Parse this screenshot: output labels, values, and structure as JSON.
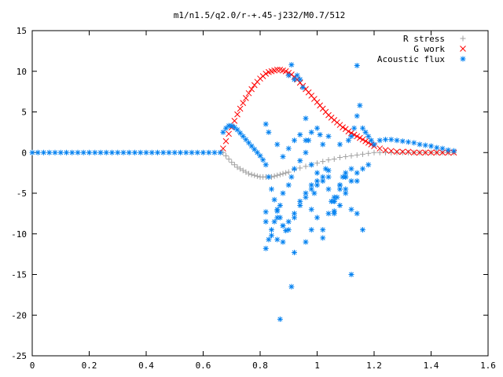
{
  "chart_data": {
    "type": "scatter",
    "title": "m1/n1.5/q2.0/r-+.45-j232/M0.7/512",
    "xlabel": "",
    "ylabel": "",
    "xlim": [
      0,
      1.6
    ],
    "ylim": [
      -25,
      15
    ],
    "x_ticks": [
      "0",
      "0.2",
      "0.4",
      "0.6",
      "0.8",
      "1",
      "1.2",
      "1.4",
      "1.6"
    ],
    "y_ticks": [
      "15",
      "10",
      "5",
      "0",
      "-5",
      "-10",
      "-15",
      "-20",
      "-25"
    ],
    "grid": false,
    "legend_position": "top-right",
    "series": [
      {
        "name": "R stress",
        "marker": "plus",
        "color": "#a0a0a0",
        "x": [
          0.67,
          0.68,
          0.69,
          0.7,
          0.71,
          0.72,
          0.73,
          0.74,
          0.75,
          0.76,
          0.77,
          0.78,
          0.79,
          0.8,
          0.81,
          0.82,
          0.83,
          0.84,
          0.85,
          0.86,
          0.87,
          0.88,
          0.89,
          0.9,
          0.92,
          0.94,
          0.96,
          0.98,
          1.0,
          1.02,
          1.04,
          1.06,
          1.08,
          1.1,
          1.12,
          1.14,
          1.16,
          1.18,
          1.2,
          1.22,
          1.24,
          1.26,
          1.28,
          1.3,
          1.32,
          1.34,
          1.36,
          1.38,
          1.4,
          1.42,
          1.44,
          1.46,
          1.48
        ],
        "y": [
          0.0,
          -0.4,
          -0.8,
          -1.2,
          -1.5,
          -1.8,
          -2.0,
          -2.2,
          -2.4,
          -2.6,
          -2.7,
          -2.8,
          -2.9,
          -3.0,
          -3.0,
          -3.0,
          -3.0,
          -3.0,
          -2.9,
          -2.8,
          -2.7,
          -2.6,
          -2.5,
          -2.4,
          -2.1,
          -1.9,
          -1.7,
          -1.5,
          -1.3,
          -1.1,
          -0.9,
          -0.8,
          -0.6,
          -0.5,
          -0.4,
          -0.3,
          -0.2,
          -0.1,
          0.0,
          0.0,
          0.0,
          0.0,
          0.0,
          0.0,
          0.0,
          0.0,
          0.0,
          0.0,
          0.0,
          0.0,
          0.0,
          0.0,
          0.0
        ]
      },
      {
        "name": "G work",
        "marker": "cross",
        "color": "#ff0000",
        "x": [
          0.67,
          0.68,
          0.69,
          0.7,
          0.71,
          0.72,
          0.73,
          0.74,
          0.75,
          0.76,
          0.77,
          0.78,
          0.79,
          0.8,
          0.81,
          0.82,
          0.83,
          0.84,
          0.85,
          0.86,
          0.87,
          0.88,
          0.89,
          0.9,
          0.91,
          0.92,
          0.93,
          0.94,
          0.95,
          0.96,
          0.97,
          0.98,
          0.99,
          1.0,
          1.01,
          1.02,
          1.03,
          1.04,
          1.05,
          1.06,
          1.07,
          1.08,
          1.09,
          1.1,
          1.11,
          1.12,
          1.13,
          1.14,
          1.15,
          1.16,
          1.17,
          1.18,
          1.19,
          1.2,
          1.22,
          1.24,
          1.26,
          1.28,
          1.3,
          1.32,
          1.34,
          1.36,
          1.38,
          1.4,
          1.42,
          1.44,
          1.46,
          1.48
        ],
        "y": [
          0.5,
          1.4,
          2.3,
          3.1,
          3.9,
          4.7,
          5.4,
          6.1,
          6.7,
          7.3,
          7.8,
          8.3,
          8.7,
          9.1,
          9.4,
          9.7,
          9.9,
          10.0,
          10.1,
          10.2,
          10.2,
          10.1,
          10.0,
          9.8,
          9.6,
          9.3,
          9.0,
          8.6,
          8.2,
          7.8,
          7.4,
          7.0,
          6.6,
          6.2,
          5.8,
          5.4,
          5.0,
          4.6,
          4.3,
          4.0,
          3.7,
          3.4,
          3.1,
          2.9,
          2.6,
          2.4,
          2.2,
          2.0,
          1.8,
          1.6,
          1.4,
          1.2,
          1.0,
          0.8,
          0.5,
          0.3,
          0.2,
          0.1,
          0.1,
          0.1,
          0.0,
          0.0,
          0.0,
          0.0,
          0.0,
          0.0,
          0.0,
          0.0
        ]
      },
      {
        "name": "Acoustic flux",
        "marker": "star",
        "color": "#0080f0",
        "x": [
          0.0,
          0.02,
          0.04,
          0.06,
          0.08,
          0.1,
          0.12,
          0.14,
          0.16,
          0.18,
          0.2,
          0.22,
          0.24,
          0.26,
          0.28,
          0.3,
          0.32,
          0.34,
          0.36,
          0.38,
          0.4,
          0.42,
          0.44,
          0.46,
          0.48,
          0.5,
          0.52,
          0.54,
          0.56,
          0.58,
          0.6,
          0.62,
          0.64,
          0.66,
          0.67,
          0.68,
          0.69,
          0.7,
          0.71,
          0.72,
          0.73,
          0.74,
          0.75,
          0.76,
          0.77,
          0.78,
          0.79,
          0.8,
          0.81,
          0.82,
          0.83,
          0.84,
          0.85,
          0.86,
          0.87,
          0.88,
          0.89,
          0.9,
          0.91,
          0.92,
          0.93,
          0.94,
          0.95,
          0.96,
          0.97,
          0.98,
          0.99,
          1.0,
          1.01,
          1.02,
          1.03,
          1.04,
          1.05,
          1.06,
          1.07,
          1.08,
          1.09,
          1.1,
          1.11,
          1.12,
          1.13,
          1.14,
          1.15,
          1.16,
          1.17,
          1.18,
          1.19,
          1.2,
          1.22,
          1.24,
          1.26,
          1.28,
          1.3,
          1.32,
          1.34,
          1.36,
          1.38,
          1.4,
          1.42,
          1.44,
          1.46,
          1.48,
          0.82,
          0.83,
          0.84,
          0.85,
          0.86,
          0.87,
          0.88,
          0.9,
          0.91,
          0.92,
          0.94,
          0.96,
          0.98,
          1.0,
          1.02,
          1.04,
          1.06,
          1.08,
          1.1,
          1.12,
          1.14,
          1.16,
          1.18,
          0.82,
          0.86,
          0.88,
          0.9,
          0.92,
          0.94,
          0.96,
          0.98,
          1.0,
          1.02,
          1.04,
          1.06,
          1.08,
          1.1,
          1.12,
          1.14,
          1.16,
          0.82,
          0.84,
          0.86,
          0.88,
          0.9,
          0.92,
          0.94,
          0.96,
          0.98,
          1.0,
          1.02,
          1.04,
          1.06,
          1.08,
          1.1,
          1.12,
          1.14,
          0.82,
          0.83,
          0.86,
          0.88,
          0.9,
          0.92,
          0.94,
          0.96,
          0.98,
          1.0,
          1.04,
          1.08,
          1.12,
          0.87,
          0.91,
          0.92,
          0.96,
          0.98,
          1.02,
          1.06,
          1.1,
          1.14
        ],
        "y": [
          0,
          0,
          0,
          0,
          0,
          0,
          0,
          0,
          0,
          0,
          0,
          0,
          0,
          0,
          0,
          0,
          0,
          0,
          0,
          0,
          0,
          0,
          0,
          0,
          0,
          0,
          0,
          0,
          0,
          0,
          0,
          0,
          0,
          0,
          2.5,
          3.0,
          3.3,
          3.3,
          3.1,
          2.8,
          2.4,
          2.0,
          1.6,
          1.2,
          0.8,
          0.4,
          0.0,
          -0.4,
          -0.9,
          -1.5,
          -3.0,
          -4.5,
          -5.8,
          -7.2,
          -8.0,
          -9.0,
          -9.6,
          9.5,
          10.8,
          9.0,
          9.5,
          9.0,
          8.0,
          4.2,
          1.5,
          -4.0,
          -5.0,
          -3.5,
          2.2,
          1.0,
          -2.0,
          -3.0,
          -6.0,
          -7.2,
          -5.5,
          -4.0,
          -3.0,
          -2.5,
          1.5,
          2.0,
          3.0,
          10.7,
          5.8,
          3.0,
          2.5,
          2.0,
          1.5,
          1.0,
          1.5,
          1.6,
          1.6,
          1.5,
          1.4,
          1.3,
          1.2,
          1.0,
          0.9,
          0.8,
          0.6,
          0.5,
          0.3,
          0.2,
          -11.8,
          -10.7,
          -9.5,
          -8.5,
          -7.0,
          -6.5,
          -5.0,
          -4.0,
          -3.0,
          -2.0,
          -1.0,
          0.0,
          -1.5,
          -2.5,
          -3.5,
          -4.5,
          -5.5,
          -6.5,
          -4.5,
          -3.5,
          -2.5,
          -2.0,
          -1.5,
          -7.3,
          -8.0,
          -9.0,
          -8.5,
          -7.5,
          -6.5,
          -5.5,
          -4.5,
          -4.0,
          -3.0,
          -2.2,
          -6.0,
          -4.0,
          -3.0,
          -2.0,
          -7.5,
          -9.5,
          -8.5,
          -10.2,
          -10.7,
          -11.0,
          -9.5,
          -8.0,
          -6.0,
          -5.0,
          -7.0,
          -8.0,
          -9.5,
          -7.5,
          -6.0,
          -4.5,
          -3.0,
          -7.0,
          4.5,
          3.5,
          2.5,
          1.0,
          -0.5,
          0.5,
          1.5,
          2.2,
          1.5,
          2.5,
          3.0,
          2.0,
          1.0,
          -15.0,
          -20.5,
          -16.5,
          -12.3,
          -11.0,
          -9.5,
          -10.5,
          -7.5,
          -5.0,
          -3.5
        ]
      }
    ]
  }
}
